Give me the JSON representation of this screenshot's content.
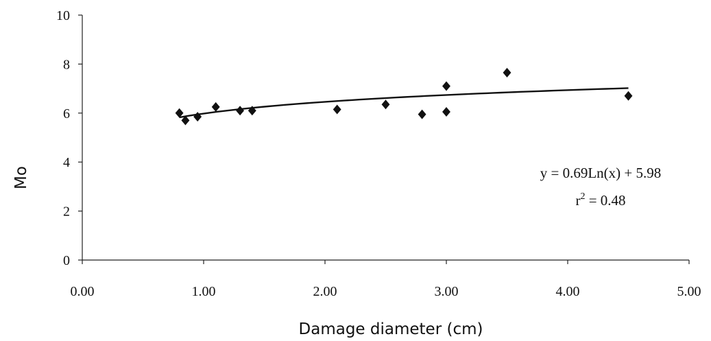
{
  "chart_data": {
    "type": "scatter",
    "title": "",
    "xlabel": "Damage diameter (cm)",
    "ylabel": "Mo",
    "xlim": [
      0,
      5
    ],
    "ylim": [
      0,
      10
    ],
    "x_ticks": [
      0,
      1,
      2,
      3,
      4,
      5
    ],
    "x_tick_labels": [
      "0.00",
      "1.00",
      "2.00",
      "3.00",
      "4.00",
      "5.00"
    ],
    "y_ticks": [
      0,
      2,
      4,
      6,
      8,
      10
    ],
    "y_tick_labels": [
      "0",
      "2",
      "4",
      "6",
      "8",
      "10"
    ],
    "grid": false,
    "marker": "diamond",
    "series": [
      {
        "points": [
          {
            "x": 0.8,
            "y": 6.0
          },
          {
            "x": 0.85,
            "y": 5.7
          },
          {
            "x": 0.95,
            "y": 5.85
          },
          {
            "x": 1.1,
            "y": 6.25
          },
          {
            "x": 1.3,
            "y": 6.1
          },
          {
            "x": 1.4,
            "y": 6.1
          },
          {
            "x": 2.1,
            "y": 6.15
          },
          {
            "x": 2.5,
            "y": 6.35
          },
          {
            "x": 2.8,
            "y": 5.95
          },
          {
            "x": 3.0,
            "y": 6.05
          },
          {
            "x": 3.0,
            "y": 7.1
          },
          {
            "x": 3.5,
            "y": 7.65
          },
          {
            "x": 4.5,
            "y": 6.7
          }
        ]
      }
    ],
    "trendline": {
      "type": "logarithmic",
      "a": 0.69,
      "b": 5.98,
      "x_range": [
        0.8,
        4.5
      ]
    },
    "annotations": {
      "equation": "y = 0.69Ln(x) + 5.98",
      "r2_prefix": "r",
      "r2_exponent": "2",
      "r2_value": " = 0.48"
    }
  }
}
